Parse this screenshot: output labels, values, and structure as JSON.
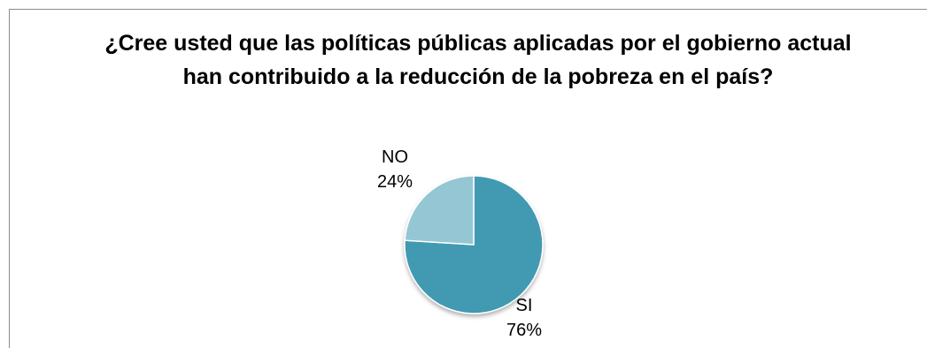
{
  "chart_data": {
    "type": "pie",
    "title": "¿Cree usted que las políticas públicas aplicadas por el gobierno actual han contribuido a la reducción de la pobreza en el país?",
    "categories": [
      "SI",
      "NO"
    ],
    "values": [
      76,
      24
    ],
    "value_labels": [
      "76%",
      "24%"
    ],
    "colors": [
      "#4399b2",
      "#95c6d4"
    ],
    "start_angle_deg": 0,
    "direction": "clockwise",
    "legend": "none"
  }
}
